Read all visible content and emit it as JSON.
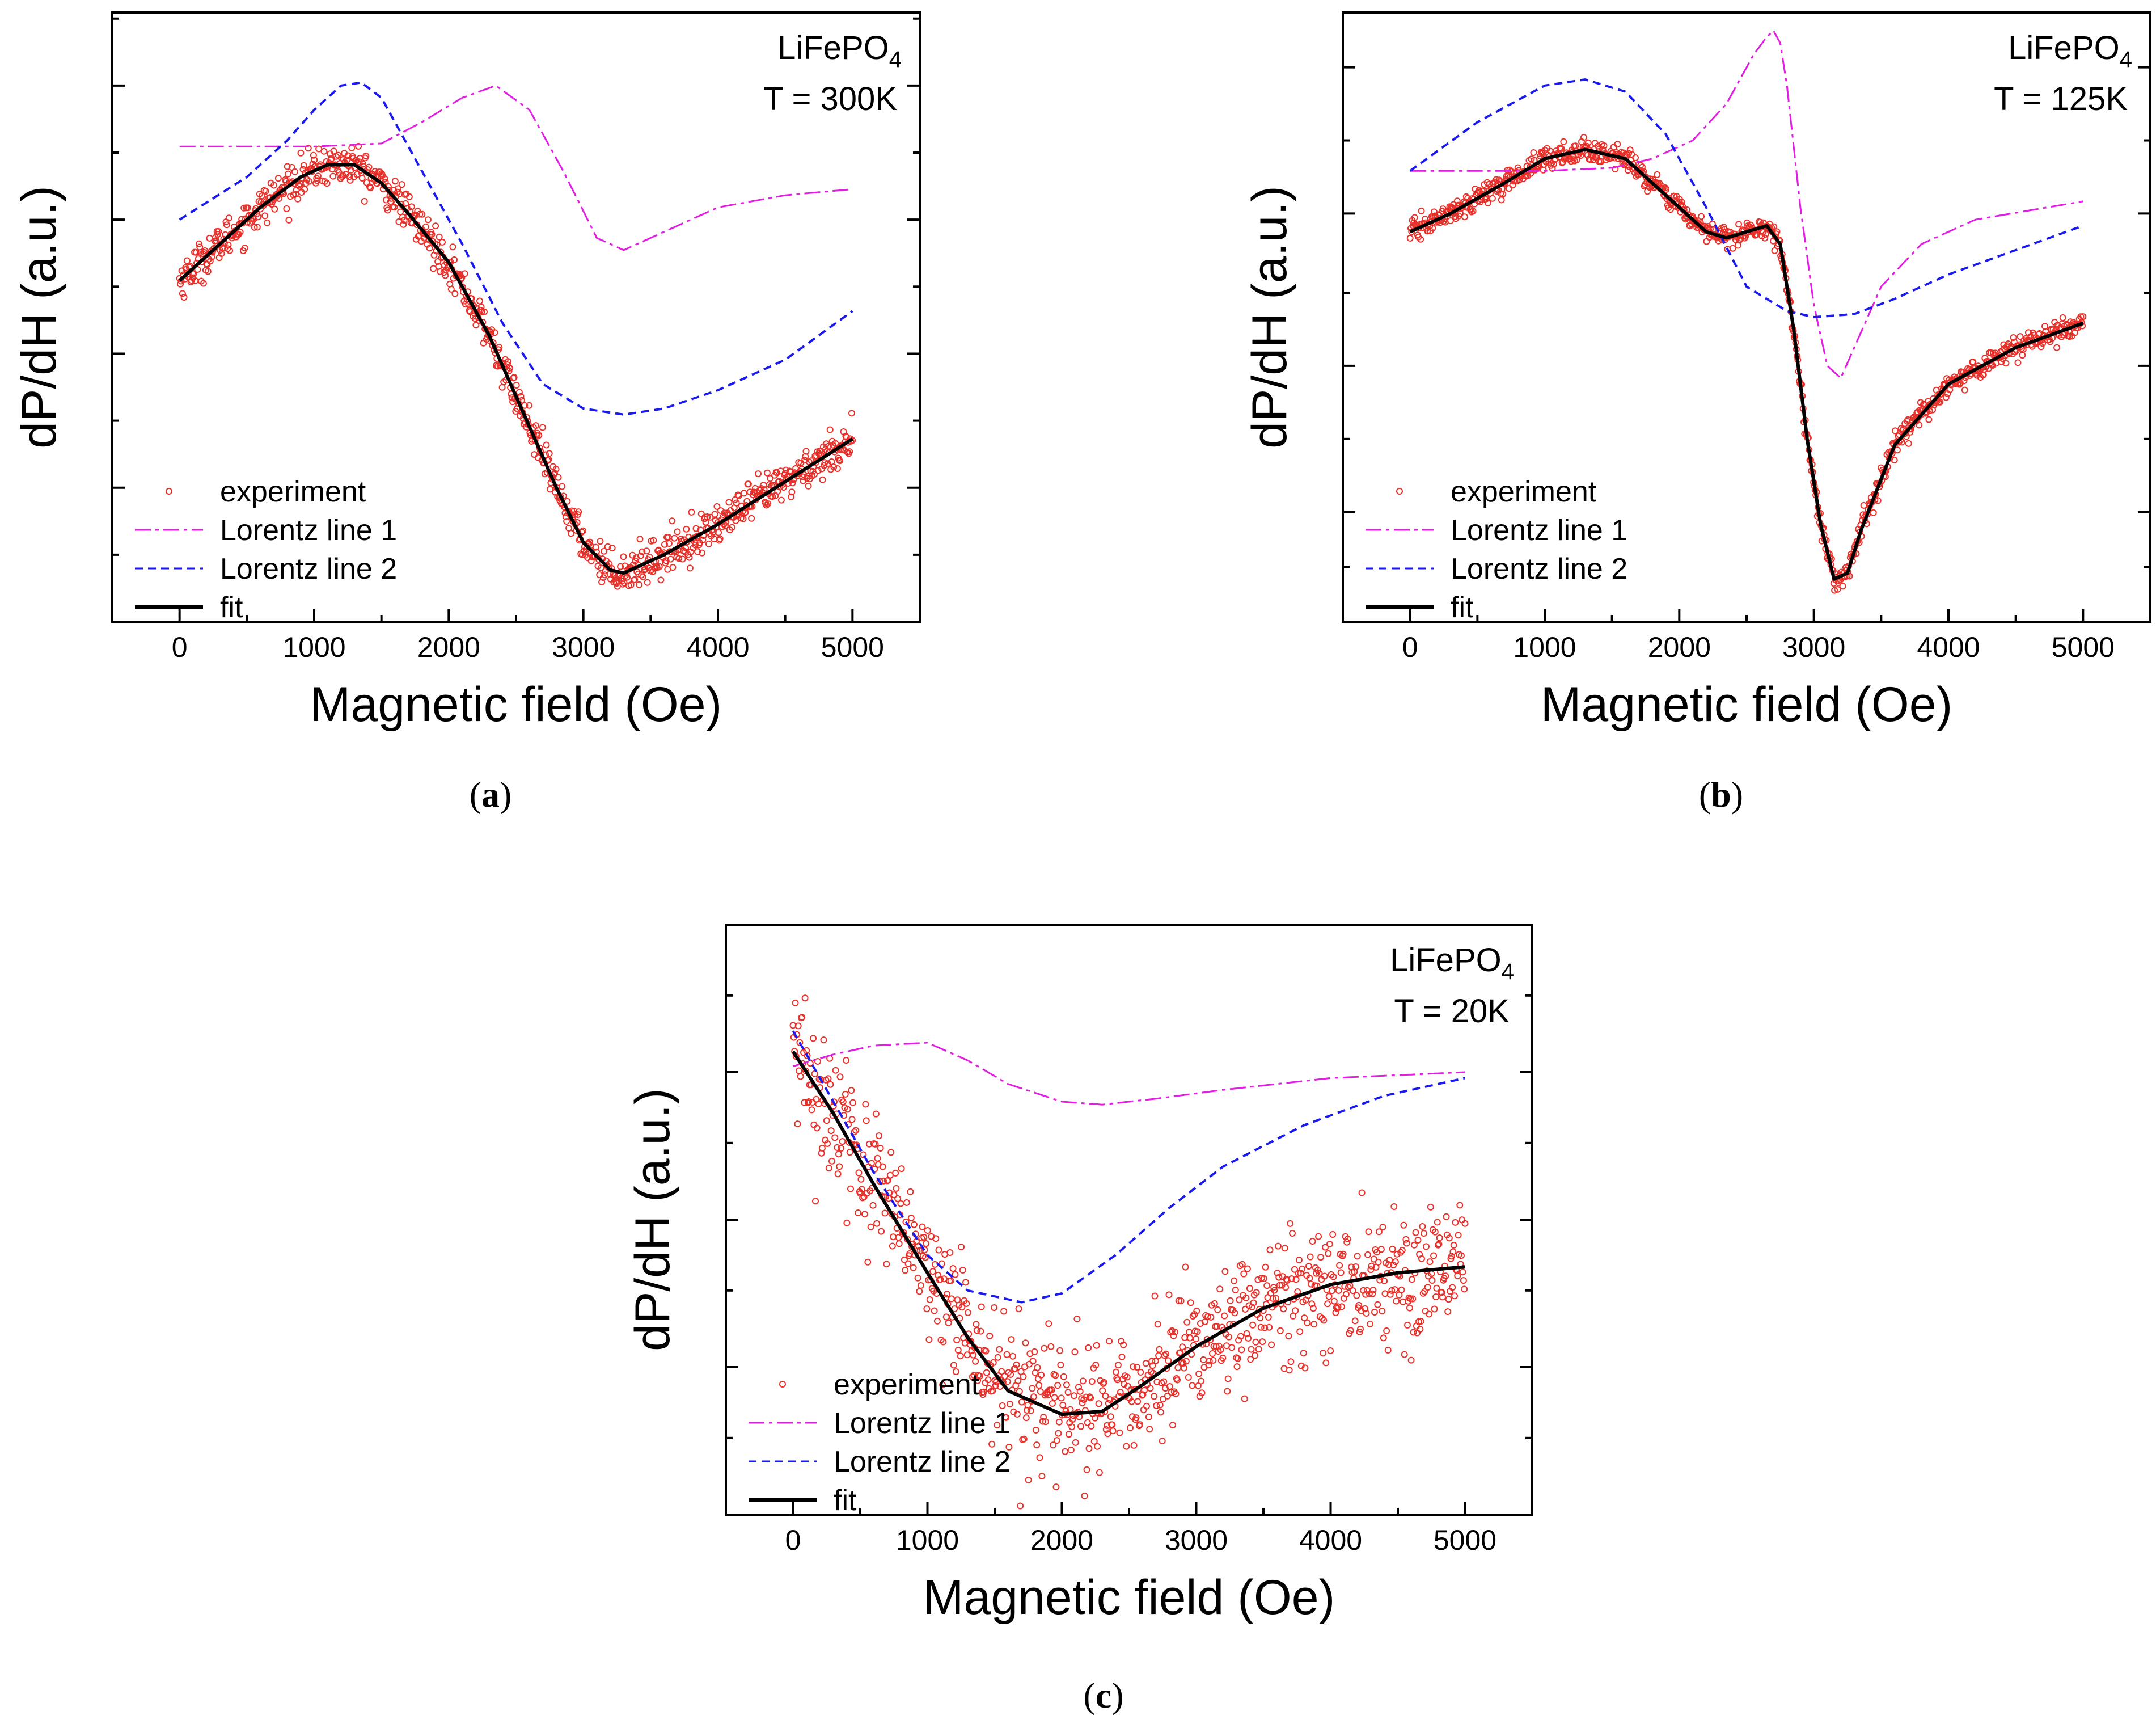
{
  "figure": {
    "caption_paren_open": "(",
    "caption_paren_close": ")"
  },
  "chart_data": [
    {
      "panel": "a",
      "type": "line",
      "caption_letter": "a",
      "xlabel": "Magnetic field (Oe)",
      "ylabel": "dP/dH (a.u.)",
      "xlim": [
        -500,
        5500
      ],
      "ylim": [
        0,
        10
      ],
      "x_ticks": [
        0,
        1000,
        2000,
        3000,
        4000,
        5000
      ],
      "x_tick_labels": [
        "0",
        "1000",
        "2000",
        "3000",
        "4000",
        "5000"
      ],
      "y_tick_labels": [],
      "annotation": {
        "compound": "LiFePO",
        "subscript": "4",
        "temperature": "T = 300K"
      },
      "legend": {
        "position": "bottom-left",
        "entries": [
          "experiment",
          "Lorentz line 1",
          "Lorentz line 2",
          "fit"
        ]
      },
      "colors": {
        "experiment": "#e8312a",
        "line1": "#e01fe0",
        "line2": "#1a1aee",
        "fit": "#000000"
      },
      "noise": 0.16,
      "series": [
        {
          "name": "Lorentz line 1",
          "style": "dashdot",
          "x": [
            0,
            500,
            1000,
            1500,
            1800,
            2100,
            2350,
            2600,
            2850,
            3100,
            3300,
            3600,
            4000,
            4500,
            5000
          ],
          "y": [
            7.8,
            7.8,
            7.8,
            7.85,
            8.2,
            8.6,
            8.8,
            8.4,
            7.4,
            6.3,
            6.1,
            6.4,
            6.8,
            7.0,
            7.1
          ]
        },
        {
          "name": "Lorentz line 2",
          "style": "dashed",
          "x": [
            0,
            500,
            800,
            1000,
            1200,
            1350,
            1500,
            1800,
            2100,
            2400,
            2700,
            3000,
            3300,
            3600,
            4000,
            4500,
            5000
          ],
          "y": [
            6.6,
            7.3,
            7.9,
            8.4,
            8.8,
            8.85,
            8.6,
            7.4,
            6.2,
            4.9,
            3.9,
            3.5,
            3.4,
            3.5,
            3.8,
            4.3,
            5.1
          ]
        },
        {
          "name": "fit",
          "style": "solid",
          "x": [
            0,
            300,
            600,
            900,
            1100,
            1300,
            1500,
            1700,
            2000,
            2300,
            2600,
            2800,
            3000,
            3200,
            3300,
            3600,
            4000,
            4500,
            5000
          ],
          "y": [
            5.6,
            6.2,
            6.8,
            7.3,
            7.5,
            7.5,
            7.2,
            6.7,
            5.9,
            4.7,
            3.2,
            2.2,
            1.3,
            0.85,
            0.8,
            1.1,
            1.6,
            2.3,
            3.0
          ]
        }
      ],
      "experiment_source": "fit"
    },
    {
      "panel": "b",
      "type": "line",
      "caption_letter": "b",
      "xlabel": "Magnetic field (Oe)",
      "ylabel": "dP/dH (a.u.)",
      "xlim": [
        -500,
        5500
      ],
      "ylim": [
        0,
        10
      ],
      "x_ticks": [
        0,
        1000,
        2000,
        3000,
        4000,
        5000
      ],
      "x_tick_labels": [
        "0",
        "1000",
        "2000",
        "3000",
        "4000",
        "5000"
      ],
      "y_tick_labels": [],
      "annotation": {
        "compound": "LiFePO",
        "subscript": "4",
        "temperature": "T = 125K"
      },
      "legend": {
        "position": "bottom-left",
        "entries": [
          "experiment",
          "Lorentz line 1",
          "Lorentz line 2",
          "fit"
        ]
      },
      "colors": {
        "experiment": "#e8312a",
        "line1": "#e01fe0",
        "line2": "#1a1aee",
        "fit": "#000000"
      },
      "noise": 0.09,
      "series": [
        {
          "name": "Lorentz line 1",
          "style": "dashdot",
          "x": [
            0,
            1000,
            1500,
            1800,
            2100,
            2350,
            2550,
            2650,
            2700,
            2750,
            2800,
            2900,
            3000,
            3100,
            3200,
            3300,
            3500,
            3800,
            4200,
            5000
          ],
          "y": [
            7.4,
            7.4,
            7.45,
            7.6,
            7.9,
            8.5,
            9.3,
            9.6,
            9.7,
            9.5,
            8.8,
            6.8,
            5.2,
            4.2,
            4.0,
            4.5,
            5.5,
            6.2,
            6.6,
            6.9
          ]
        },
        {
          "name": "Lorentz line 2",
          "style": "dashed",
          "x": [
            0,
            500,
            1000,
            1300,
            1600,
            1900,
            2200,
            2500,
            2800,
            3000,
            3300,
            3600,
            4000,
            4500,
            5000
          ],
          "y": [
            7.4,
            8.2,
            8.8,
            8.9,
            8.7,
            8.0,
            6.8,
            5.5,
            5.1,
            5.0,
            5.05,
            5.3,
            5.7,
            6.1,
            6.5
          ]
        },
        {
          "name": "fit",
          "style": "solid",
          "x": [
            0,
            300,
            700,
            1000,
            1300,
            1600,
            1900,
            2200,
            2350,
            2500,
            2650,
            2750,
            2850,
            2950,
            3050,
            3150,
            3250,
            3350,
            3600,
            4000,
            4500,
            5000
          ],
          "y": [
            6.4,
            6.7,
            7.2,
            7.6,
            7.75,
            7.6,
            7.0,
            6.4,
            6.3,
            6.4,
            6.5,
            6.2,
            4.8,
            3.0,
            1.6,
            0.7,
            0.8,
            1.5,
            2.9,
            3.9,
            4.5,
            4.9
          ]
        }
      ],
      "experiment_source": "fit"
    },
    {
      "panel": "c",
      "type": "line",
      "caption_letter": "c",
      "xlabel": "Magnetic field (Oe)",
      "ylabel": "dP/dH (a.u.)",
      "xlim": [
        -500,
        5500
      ],
      "ylim": [
        0,
        10
      ],
      "x_ticks": [
        0,
        1000,
        2000,
        3000,
        4000,
        5000
      ],
      "x_tick_labels": [
        "0",
        "1000",
        "2000",
        "3000",
        "4000",
        "5000"
      ],
      "y_tick_labels": [],
      "annotation": {
        "compound": "LiFePO",
        "subscript": "4",
        "temperature": "T = 20K"
      },
      "legend": {
        "position": "bottom-left",
        "entries": [
          "experiment",
          "Lorentz line 1",
          "Lorentz line 2",
          "fit"
        ]
      },
      "colors": {
        "experiment": "#e8312a",
        "line1": "#e01fe0",
        "line2": "#1a1aee",
        "fit": "#000000"
      },
      "noise": 0.55,
      "series": [
        {
          "name": "Lorentz line 1",
          "style": "dashdot",
          "x": [
            0,
            300,
            600,
            1000,
            1300,
            1600,
            2000,
            2300,
            2700,
            3200,
            4000,
            5000
          ],
          "y": [
            7.6,
            7.8,
            7.95,
            8.0,
            7.7,
            7.3,
            7.0,
            6.95,
            7.05,
            7.2,
            7.4,
            7.5
          ]
        },
        {
          "name": "Lorentz line 2",
          "style": "dashed",
          "x": [
            0,
            300,
            600,
            1000,
            1300,
            1700,
            2000,
            2400,
            2800,
            3200,
            3800,
            4400,
            5000
          ],
          "y": [
            8.2,
            7.0,
            5.8,
            4.4,
            3.8,
            3.6,
            3.75,
            4.4,
            5.2,
            5.9,
            6.6,
            7.1,
            7.4
          ]
        },
        {
          "name": "fit",
          "style": "solid",
          "x": [
            0,
            300,
            600,
            1000,
            1300,
            1600,
            2000,
            2300,
            2600,
            3000,
            3500,
            4000,
            4500,
            5000
          ],
          "y": [
            7.85,
            6.8,
            5.6,
            4.1,
            3.0,
            2.1,
            1.7,
            1.75,
            2.2,
            2.85,
            3.5,
            3.9,
            4.1,
            4.2
          ]
        }
      ],
      "experiment_source": "fit"
    }
  ]
}
